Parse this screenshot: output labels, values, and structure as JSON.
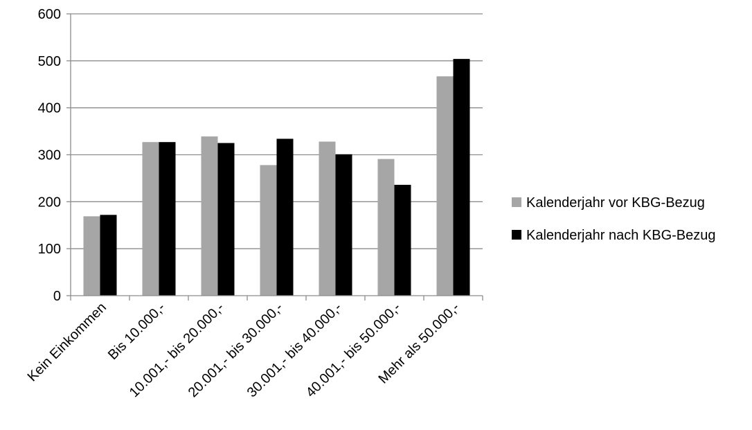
{
  "chart_data": {
    "type": "bar",
    "title": "",
    "xlabel": "",
    "ylabel": "",
    "ylim": [
      0,
      600
    ],
    "yticks": [
      0,
      100,
      200,
      300,
      400,
      500,
      600
    ],
    "grid": "horizontal",
    "legend_position": "right",
    "categories": [
      "Kein Einkommen",
      "Bis 10.000,-",
      "10.001,- bis 20.000,-",
      "20.001,- bis 30.000,-",
      "30.001,- bis 40.000,-",
      "40.001,- bis 50.000,-",
      "Mehr als 50.000,-"
    ],
    "series": [
      {
        "name": "Kalenderjahr vor KBG-Bezug",
        "color": "#a6a6a6",
        "values": [
          169,
          327,
          339,
          278,
          328,
          291,
          467
        ]
      },
      {
        "name": "Kalenderjahr nach KBG-Bezug",
        "color": "#000000",
        "values": [
          172,
          327,
          325,
          334,
          301,
          236,
          504
        ]
      }
    ]
  }
}
